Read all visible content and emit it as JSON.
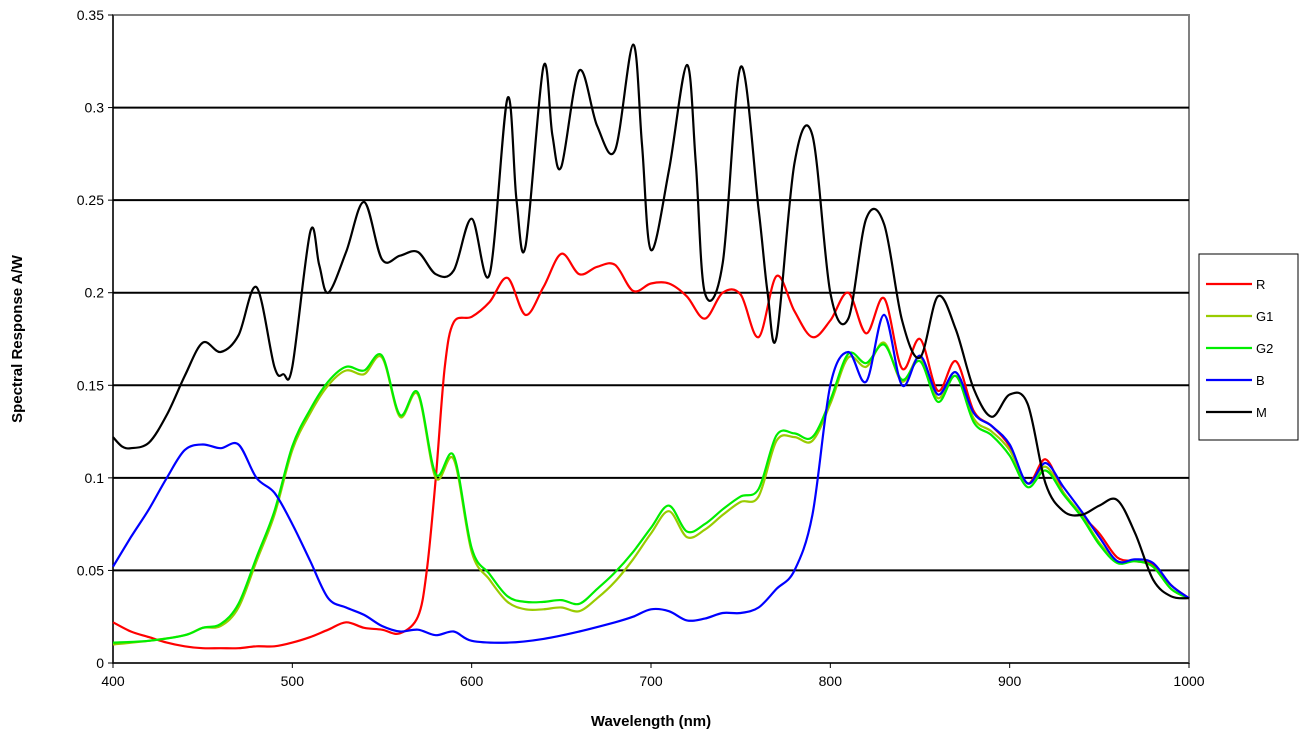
{
  "chart_data": {
    "type": "line",
    "title": "",
    "xlabel": "Wavelength (nm)",
    "ylabel": "Spectral Response A/W",
    "xlim": [
      400,
      1000
    ],
    "ylim": [
      0,
      0.35
    ],
    "xticks": [
      400,
      500,
      600,
      700,
      800,
      900,
      1000
    ],
    "yticks": [
      0,
      0.05,
      0.1,
      0.15,
      0.2,
      0.25,
      0.3,
      0.35
    ],
    "xtick_labels": [
      "400",
      "500",
      "600",
      "700",
      "800",
      "900",
      "1000"
    ],
    "ytick_labels": [
      "0",
      "0.05",
      "0.1",
      "0.15",
      "0.2",
      "0.25",
      "0.3",
      "0.35"
    ],
    "grid": "horizontal",
    "legend_position": "right",
    "series": [
      {
        "name": "R",
        "color": "#ff0000",
        "x": [
          400,
          410,
          420,
          430,
          440,
          450,
          460,
          470,
          480,
          490,
          500,
          510,
          520,
          530,
          540,
          550,
          560,
          570,
          575,
          580,
          585,
          590,
          600,
          610,
          620,
          630,
          640,
          650,
          660,
          670,
          680,
          690,
          700,
          710,
          720,
          730,
          740,
          750,
          760,
          770,
          780,
          790,
          800,
          810,
          820,
          830,
          840,
          850,
          860,
          870,
          880,
          890,
          900,
          910,
          920,
          930,
          940,
          950,
          960,
          970,
          980,
          990,
          1000
        ],
        "y": [
          0.022,
          0.017,
          0.014,
          0.011,
          0.009,
          0.008,
          0.008,
          0.008,
          0.009,
          0.009,
          0.011,
          0.014,
          0.018,
          0.022,
          0.019,
          0.018,
          0.016,
          0.025,
          0.05,
          0.1,
          0.16,
          0.184,
          0.187,
          0.195,
          0.208,
          0.188,
          0.203,
          0.221,
          0.21,
          0.214,
          0.215,
          0.201,
          0.205,
          0.205,
          0.198,
          0.186,
          0.2,
          0.199,
          0.176,
          0.209,
          0.19,
          0.176,
          0.185,
          0.2,
          0.178,
          0.197,
          0.159,
          0.175,
          0.147,
          0.163,
          0.136,
          0.128,
          0.117,
          0.097,
          0.11,
          0.092,
          0.08,
          0.07,
          0.057,
          0.055,
          0.053,
          0.042,
          0.035
        ]
      },
      {
        "name": "G1",
        "color": "#99cc00",
        "x": [
          400,
          420,
          440,
          450,
          460,
          470,
          480,
          490,
          500,
          510,
          520,
          530,
          540,
          550,
          560,
          570,
          580,
          590,
          600,
          610,
          620,
          630,
          640,
          650,
          660,
          670,
          680,
          690,
          700,
          710,
          720,
          730,
          740,
          750,
          760,
          770,
          780,
          790,
          800,
          810,
          820,
          830,
          840,
          850,
          860,
          870,
          880,
          890,
          900,
          910,
          920,
          930,
          940,
          950,
          960,
          970,
          980,
          990,
          1000
        ],
        "y": [
          0.01,
          0.012,
          0.015,
          0.019,
          0.02,
          0.03,
          0.055,
          0.08,
          0.115,
          0.135,
          0.15,
          0.158,
          0.156,
          0.165,
          0.133,
          0.145,
          0.1,
          0.11,
          0.06,
          0.045,
          0.033,
          0.029,
          0.029,
          0.03,
          0.028,
          0.035,
          0.044,
          0.056,
          0.07,
          0.082,
          0.068,
          0.072,
          0.08,
          0.087,
          0.09,
          0.12,
          0.122,
          0.12,
          0.14,
          0.165,
          0.16,
          0.173,
          0.152,
          0.165,
          0.143,
          0.157,
          0.132,
          0.125,
          0.115,
          0.097,
          0.106,
          0.092,
          0.08,
          0.065,
          0.055,
          0.055,
          0.052,
          0.04,
          0.035
        ]
      },
      {
        "name": "G2",
        "color": "#00ee00",
        "x": [
          400,
          420,
          440,
          450,
          460,
          470,
          480,
          490,
          500,
          510,
          520,
          530,
          540,
          550,
          560,
          570,
          580,
          590,
          600,
          610,
          620,
          630,
          640,
          650,
          660,
          670,
          680,
          690,
          700,
          710,
          720,
          730,
          740,
          750,
          760,
          770,
          780,
          790,
          800,
          810,
          820,
          830,
          840,
          850,
          860,
          870,
          880,
          890,
          900,
          910,
          920,
          930,
          940,
          950,
          960,
          970,
          980,
          990,
          1000
        ],
        "y": [
          0.011,
          0.012,
          0.015,
          0.019,
          0.021,
          0.032,
          0.057,
          0.082,
          0.117,
          0.137,
          0.152,
          0.16,
          0.158,
          0.166,
          0.134,
          0.146,
          0.102,
          0.112,
          0.062,
          0.048,
          0.036,
          0.033,
          0.033,
          0.034,
          0.032,
          0.04,
          0.049,
          0.06,
          0.073,
          0.085,
          0.071,
          0.075,
          0.083,
          0.09,
          0.094,
          0.123,
          0.124,
          0.122,
          0.142,
          0.167,
          0.162,
          0.172,
          0.153,
          0.163,
          0.141,
          0.155,
          0.13,
          0.123,
          0.112,
          0.095,
          0.104,
          0.091,
          0.079,
          0.064,
          0.054,
          0.055,
          0.052,
          0.04,
          0.035
        ]
      },
      {
        "name": "B",
        "color": "#0000ff",
        "x": [
          400,
          410,
          420,
          430,
          440,
          450,
          460,
          470,
          480,
          490,
          500,
          510,
          520,
          530,
          540,
          550,
          560,
          570,
          580,
          590,
          600,
          620,
          640,
          660,
          680,
          690,
          700,
          710,
          720,
          730,
          740,
          750,
          760,
          770,
          780,
          790,
          800,
          810,
          820,
          830,
          840,
          850,
          860,
          870,
          880,
          890,
          900,
          910,
          920,
          930,
          940,
          950,
          960,
          970,
          980,
          990,
          1000
        ],
        "y": [
          0.052,
          0.068,
          0.083,
          0.1,
          0.115,
          0.118,
          0.116,
          0.118,
          0.1,
          0.092,
          0.075,
          0.055,
          0.035,
          0.03,
          0.026,
          0.02,
          0.017,
          0.018,
          0.015,
          0.017,
          0.012,
          0.011,
          0.013,
          0.017,
          0.022,
          0.025,
          0.029,
          0.028,
          0.023,
          0.024,
          0.027,
          0.027,
          0.03,
          0.04,
          0.05,
          0.08,
          0.15,
          0.168,
          0.152,
          0.188,
          0.15,
          0.166,
          0.145,
          0.157,
          0.135,
          0.128,
          0.118,
          0.097,
          0.108,
          0.095,
          0.082,
          0.068,
          0.055,
          0.056,
          0.054,
          0.042,
          0.035
        ]
      },
      {
        "name": "M",
        "color": "#000000",
        "x": [
          400,
          405,
          410,
          420,
          430,
          440,
          450,
          460,
          470,
          480,
          490,
          495,
          500,
          510,
          515,
          520,
          530,
          540,
          550,
          560,
          570,
          580,
          590,
          600,
          610,
          620,
          625,
          630,
          640,
          645,
          650,
          660,
          670,
          680,
          690,
          695,
          700,
          710,
          720,
          725,
          730,
          740,
          750,
          760,
          765,
          770,
          780,
          790,
          800,
          810,
          820,
          830,
          840,
          850,
          860,
          870,
          880,
          890,
          900,
          910,
          920,
          930,
          940,
          950,
          960,
          970,
          980,
          990,
          1000
        ],
        "y": [
          0.122,
          0.117,
          0.116,
          0.119,
          0.134,
          0.155,
          0.173,
          0.168,
          0.177,
          0.203,
          0.16,
          0.156,
          0.16,
          0.233,
          0.215,
          0.2,
          0.222,
          0.249,
          0.218,
          0.22,
          0.222,
          0.21,
          0.212,
          0.24,
          0.21,
          0.305,
          0.25,
          0.225,
          0.322,
          0.285,
          0.268,
          0.32,
          0.29,
          0.277,
          0.334,
          0.28,
          0.223,
          0.266,
          0.323,
          0.27,
          0.2,
          0.216,
          0.322,
          0.245,
          0.2,
          0.176,
          0.27,
          0.285,
          0.2,
          0.186,
          0.24,
          0.237,
          0.185,
          0.165,
          0.198,
          0.18,
          0.148,
          0.133,
          0.145,
          0.14,
          0.097,
          0.082,
          0.08,
          0.085,
          0.088,
          0.07,
          0.045,
          0.036,
          0.035
        ]
      }
    ]
  }
}
